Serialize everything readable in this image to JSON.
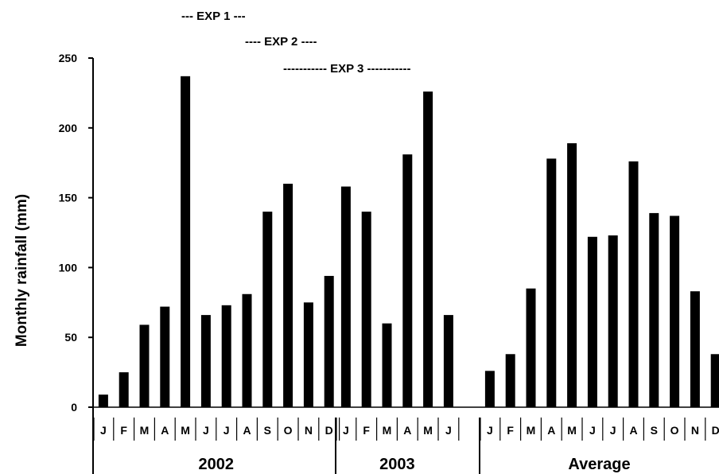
{
  "chart_data": {
    "type": "bar",
    "ylabel": "Monthly rainfall (mm)",
    "ylim": [
      0,
      250
    ],
    "yticks": [
      0,
      50,
      100,
      150,
      200,
      250
    ],
    "grid": false,
    "annotations": [
      {
        "text": "--- EXP 1 ---"
      },
      {
        "text": "---- EXP 2 ----"
      },
      {
        "text": "----------- EXP 3 -----------"
      }
    ],
    "groups": [
      {
        "name": "2002",
        "categories": [
          "J",
          "F",
          "M",
          "A",
          "M",
          "J",
          "J",
          "A",
          "S",
          "O",
          "N",
          "D"
        ],
        "values": [
          9,
          25,
          59,
          72,
          237,
          66,
          73,
          81,
          140,
          160,
          75,
          94
        ]
      },
      {
        "name": "2003",
        "categories": [
          "J",
          "F",
          "M",
          "A",
          "M",
          "J"
        ],
        "values": [
          158,
          140,
          60,
          181,
          226,
          66
        ]
      },
      {
        "name": "Average",
        "categories": [
          "J",
          "F",
          "M",
          "A",
          "M",
          "J",
          "J",
          "A",
          "S",
          "O",
          "N",
          "D"
        ],
        "values": [
          26,
          38,
          85,
          178,
          189,
          122,
          123,
          176,
          139,
          137,
          83,
          38
        ]
      }
    ]
  }
}
